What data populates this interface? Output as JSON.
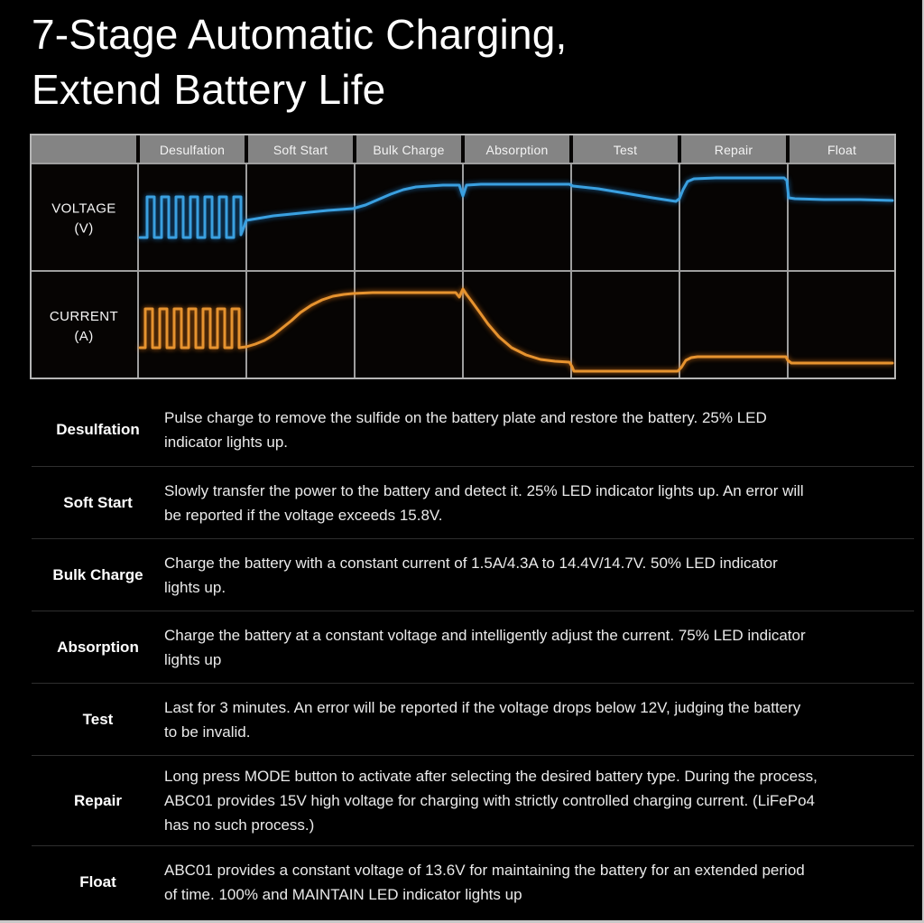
{
  "title": {
    "line1": "7-Stage Automatic Charging,",
    "line2": "Extend Battery Life"
  },
  "colors": {
    "page_bg": "#000000",
    "cell_bg": "#060403",
    "header_bg": "#848484",
    "grid": "#9e9e9e",
    "grid_outer": "#b5b5b5",
    "voltage": "#3aa0e0",
    "current": "#e6932f",
    "header_text": "#f3f3f3",
    "row_label_text": "#f7f7f7"
  },
  "chart": {
    "stages": [
      "Desulfation",
      "Soft Start",
      "Bulk Charge",
      "Absorption",
      "Test",
      "Repair",
      "Float"
    ],
    "rows": [
      {
        "label": "VOLTAGE",
        "unit": "(V)"
      },
      {
        "label": "CURRENT",
        "unit": "(A)"
      }
    ]
  },
  "chart_data": {
    "type": "line",
    "title": "7-Stage Automatic Charging, Extend Battery Life",
    "x_stages": [
      "Desulfation",
      "Soft Start",
      "Bulk Charge",
      "Absorption",
      "Test",
      "Repair",
      "Float"
    ],
    "axes_note": "Qualitative waveforms per charging stage; no numeric axis ticks shown. Desulfation = pulse train; Bulk = constant current; Absorption = constant voltage with decaying current; Repair = 15V high-voltage plateau; Float = 13.6V hold.",
    "legend": [
      "VOLTAGE (V)",
      "CURRENT (A)"
    ],
    "series": [
      {
        "name": "Voltage (V)",
        "color": "#3aa0e0",
        "points": [
          [
            122,
            115
          ],
          [
            130,
            115
          ],
          [
            130,
            70
          ],
          [
            138,
            70
          ],
          [
            138,
            115
          ],
          [
            146,
            115
          ],
          [
            146,
            70
          ],
          [
            154,
            70
          ],
          [
            154,
            115
          ],
          [
            162,
            115
          ],
          [
            162,
            70
          ],
          [
            170,
            70
          ],
          [
            170,
            115
          ],
          [
            178,
            115
          ],
          [
            178,
            70
          ],
          [
            186,
            70
          ],
          [
            186,
            115
          ],
          [
            194,
            115
          ],
          [
            194,
            70
          ],
          [
            202,
            70
          ],
          [
            202,
            115
          ],
          [
            210,
            115
          ],
          [
            210,
            70
          ],
          [
            218,
            70
          ],
          [
            218,
            115
          ],
          [
            226,
            115
          ],
          [
            226,
            70
          ],
          [
            234,
            70
          ],
          [
            234,
            112
          ],
          [
            240,
            96
          ],
          [
            252,
            94
          ],
          [
            270,
            91
          ],
          [
            290,
            89
          ],
          [
            310,
            87
          ],
          [
            330,
            85
          ],
          [
            344,
            84
          ],
          [
            358,
            83
          ],
          [
            372,
            79
          ],
          [
            386,
            73
          ],
          [
            400,
            67
          ],
          [
            414,
            62
          ],
          [
            428,
            59
          ],
          [
            442,
            58
          ],
          [
            458,
            57
          ],
          [
            472,
            57
          ],
          [
            476,
            57
          ],
          [
            480,
            69
          ],
          [
            484,
            57
          ],
          [
            500,
            56
          ],
          [
            540,
            56
          ],
          [
            580,
            56
          ],
          [
            598,
            56
          ],
          [
            602,
            58
          ],
          [
            630,
            61
          ],
          [
            660,
            66
          ],
          [
            690,
            71
          ],
          [
            716,
            75
          ],
          [
            720,
            72
          ],
          [
            724,
            62
          ],
          [
            729,
            53
          ],
          [
            736,
            50
          ],
          [
            760,
            49
          ],
          [
            800,
            49
          ],
          [
            836,
            49
          ],
          [
            839,
            52
          ],
          [
            841,
            71
          ],
          [
            848,
            72
          ],
          [
            880,
            73
          ],
          [
            920,
            73
          ],
          [
            956,
            74
          ]
        ]
      },
      {
        "name": "Current (A)",
        "color": "#e6932f",
        "points": [
          [
            122,
            237
          ],
          [
            128,
            237
          ],
          [
            128,
            194
          ],
          [
            136,
            194
          ],
          [
            136,
            237
          ],
          [
            144,
            237
          ],
          [
            144,
            194
          ],
          [
            152,
            194
          ],
          [
            152,
            237
          ],
          [
            160,
            237
          ],
          [
            160,
            194
          ],
          [
            168,
            194
          ],
          [
            168,
            237
          ],
          [
            176,
            237
          ],
          [
            176,
            194
          ],
          [
            184,
            194
          ],
          [
            184,
            237
          ],
          [
            192,
            237
          ],
          [
            192,
            194
          ],
          [
            200,
            194
          ],
          [
            200,
            237
          ],
          [
            208,
            237
          ],
          [
            208,
            194
          ],
          [
            216,
            194
          ],
          [
            216,
            237
          ],
          [
            224,
            237
          ],
          [
            224,
            194
          ],
          [
            232,
            194
          ],
          [
            232,
            237
          ],
          [
            240,
            236
          ],
          [
            250,
            233
          ],
          [
            260,
            229
          ],
          [
            270,
            223
          ],
          [
            280,
            215
          ],
          [
            290,
            207
          ],
          [
            300,
            198
          ],
          [
            312,
            190
          ],
          [
            324,
            184
          ],
          [
            336,
            180
          ],
          [
            348,
            178
          ],
          [
            358,
            177
          ],
          [
            380,
            176
          ],
          [
            420,
            176
          ],
          [
            455,
            176
          ],
          [
            472,
            176
          ],
          [
            476,
            181
          ],
          [
            480,
            172
          ],
          [
            484,
            178
          ],
          [
            490,
            186
          ],
          [
            498,
            197
          ],
          [
            508,
            211
          ],
          [
            520,
            225
          ],
          [
            534,
            237
          ],
          [
            550,
            245
          ],
          [
            566,
            250
          ],
          [
            582,
            252
          ],
          [
            598,
            253
          ],
          [
            601,
            258
          ],
          [
            603,
            263
          ],
          [
            630,
            263
          ],
          [
            670,
            263
          ],
          [
            700,
            263
          ],
          [
            718,
            263
          ],
          [
            722,
            259
          ],
          [
            727,
            251
          ],
          [
            733,
            248
          ],
          [
            740,
            247
          ],
          [
            780,
            247
          ],
          [
            820,
            247
          ],
          [
            838,
            247
          ],
          [
            840,
            251
          ],
          [
            844,
            254
          ],
          [
            880,
            254
          ],
          [
            920,
            254
          ],
          [
            956,
            254
          ]
        ]
      }
    ]
  },
  "table": {
    "rows": [
      {
        "label": "Desulfation",
        "lines": [
          "Pulse charge to remove the sulfide on the battery plate and restore the battery. 25% LED",
          "indicator lights up."
        ]
      },
      {
        "label": "Soft Start",
        "lines": [
          "Slowly transfer the power to the battery and detect it. 25% LED indicator lights up. An error will",
          "be reported if the voltage exceeds 15.8V."
        ]
      },
      {
        "label": "Bulk Charge",
        "lines": [
          "Charge the battery with a constant current of 1.5A/4.3A to 14.4V/14.7V. 50% LED indicator",
          "lights up."
        ]
      },
      {
        "label": "Absorption",
        "lines": [
          "Charge the battery at a constant voltage and intelligently adjust the current. 75% LED indicator",
          "lights up"
        ]
      },
      {
        "label": "Test",
        "lines": [
          "Last for 3 minutes. An error will be reported if the voltage drops below 12V, judging the battery",
          "to be invalid."
        ]
      },
      {
        "label": "Repair",
        "lines": [
          "Long press MODE button to activate after selecting the desired battery type. During the process,",
          "ABC01 provides 15V high voltage for charging with strictly controlled charging current. (LiFePo4",
          "has no such process.)"
        ]
      },
      {
        "label": "Float",
        "lines": [
          "ABC01 provides a constant voltage of 13.6V for maintaining the battery for an extended period",
          "of time. 100% and MAINTAIN LED indicator lights up"
        ]
      }
    ]
  }
}
